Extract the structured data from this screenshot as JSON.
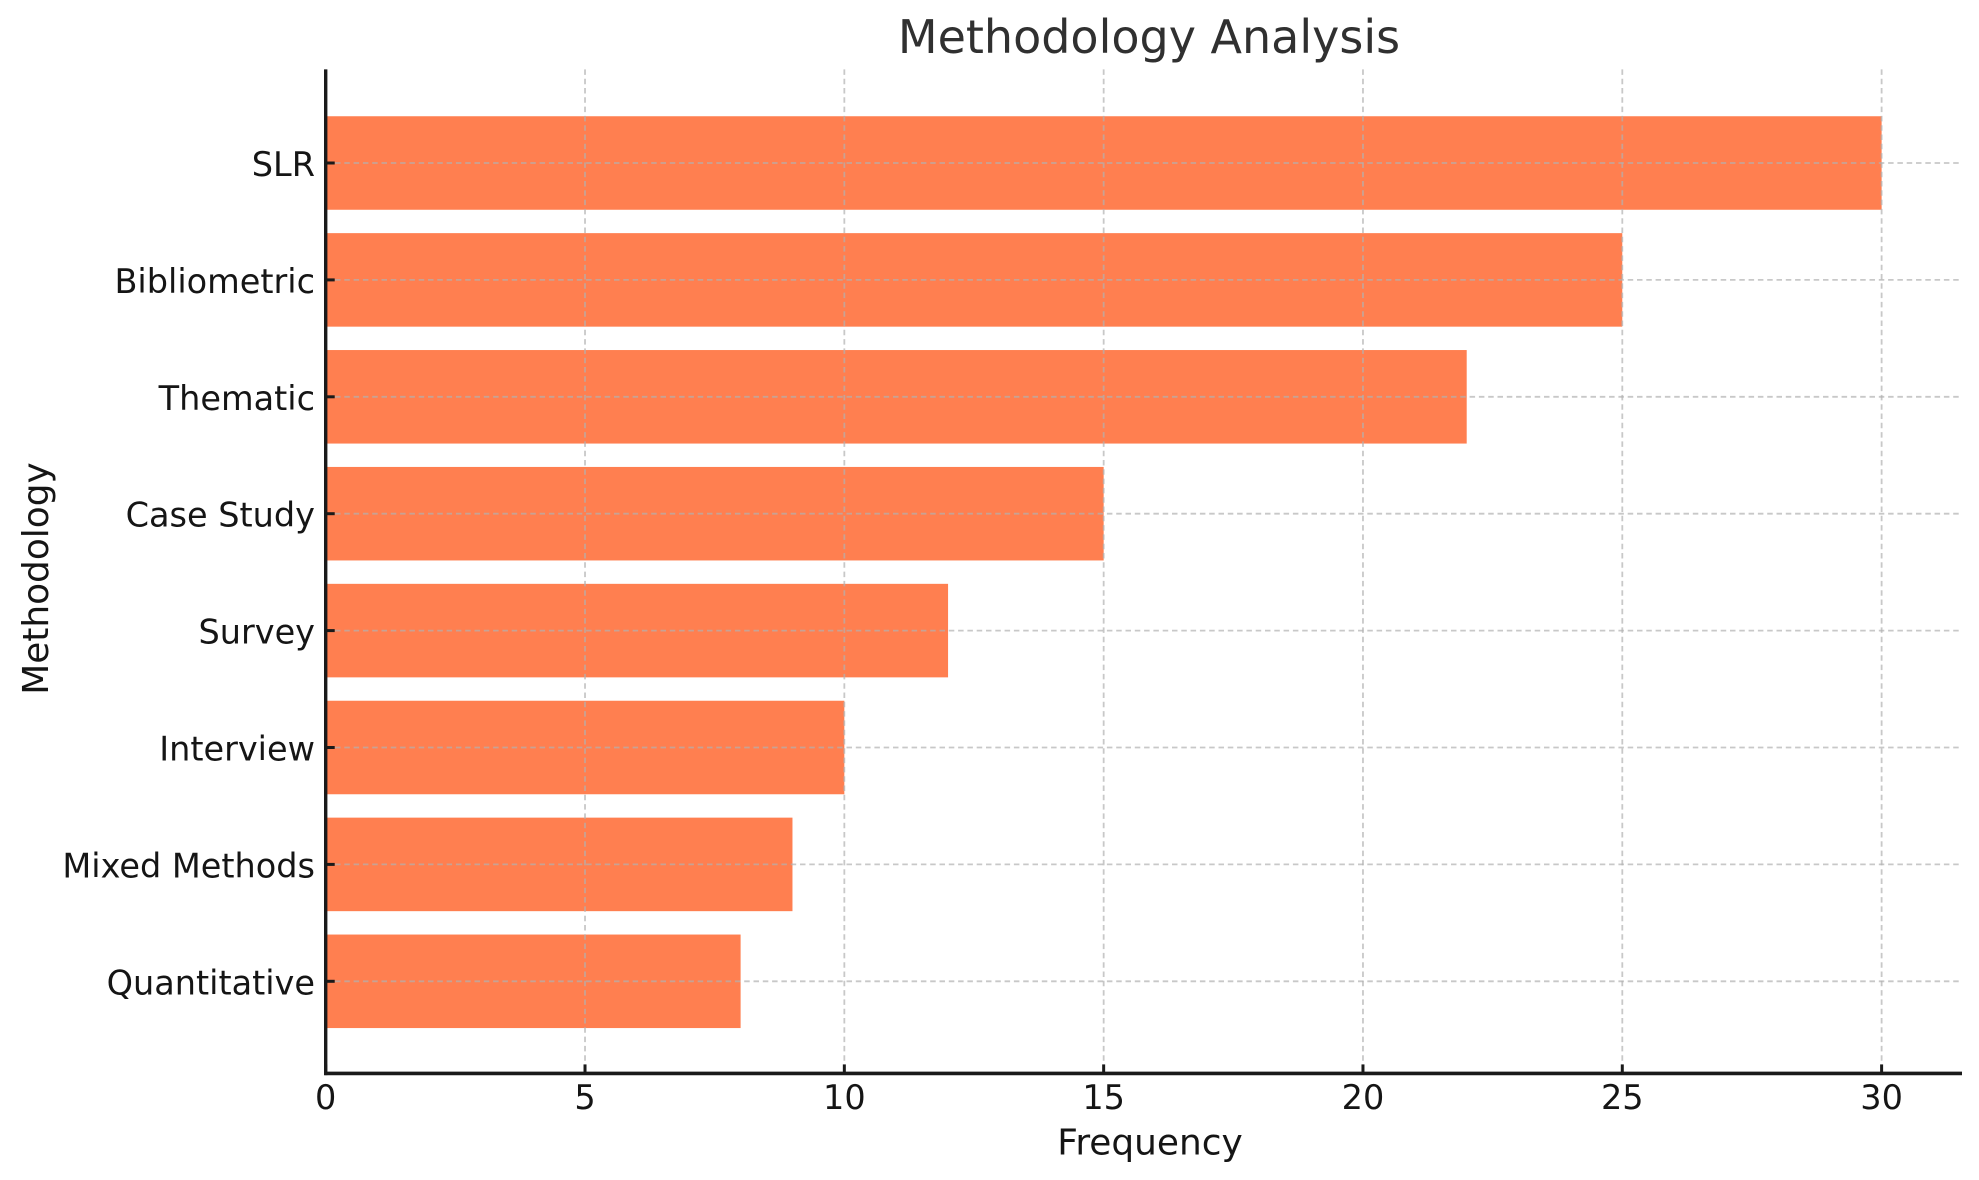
{
  "figure": {
    "background": "#ffffff"
  },
  "chart_data": {
    "type": "bar",
    "orientation": "horizontal",
    "title": "Methodology Analysis",
    "xlabel": "Frequency",
    "ylabel": "Methodology",
    "categories": [
      "SLR",
      "Bibliometric",
      "Thematic",
      "Case Study",
      "Survey",
      "Interview",
      "Mixed Methods",
      "Quantitative"
    ],
    "values": [
      30,
      25,
      22,
      15,
      12,
      10,
      9,
      8
    ],
    "xticks": [
      "0",
      "5",
      "10",
      "15",
      "20",
      "25",
      "30"
    ],
    "xtick_values": [
      0,
      5,
      10,
      15,
      20,
      25,
      30
    ],
    "xlim": [
      0,
      31.55
    ],
    "bar_color": "#ff7f50",
    "grid": {
      "visible": true,
      "linestyle": "dashed",
      "color": "#b0b0b0",
      "alpha": 0.7
    },
    "text_color": "#1a1a1a",
    "spine_color": "#1a1a1a",
    "legend_position": "none"
  }
}
